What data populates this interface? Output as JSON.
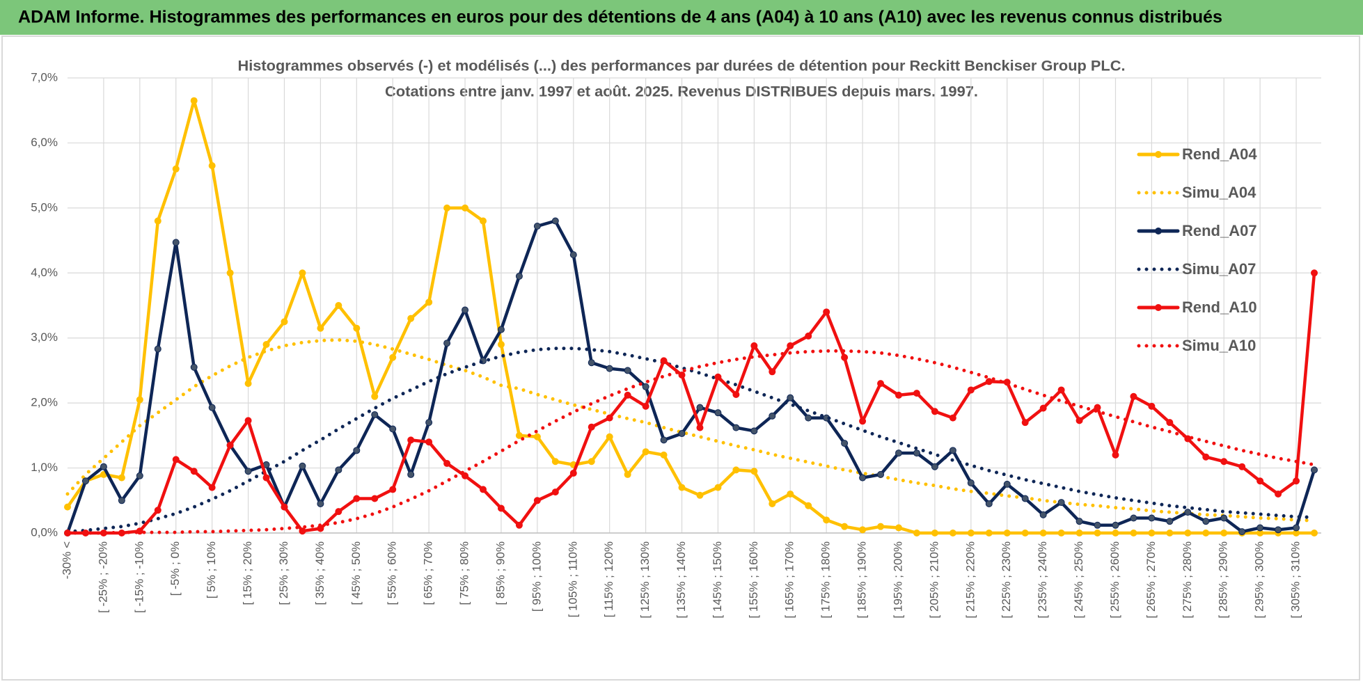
{
  "header": {
    "title": "ADAM Informe. Histogrammes des performances en euros pour des détentions de 4 ans (A04) à 10 ans (A10) avec les revenus connus distribués"
  },
  "chart_data": {
    "type": "line",
    "title": "Histogrammes observés (-) et modélisés (...) des performances par durées de détention pour Reckitt Benckiser Group PLC.",
    "subtitle": "Cotations entre janv. 1997 et août. 2025. Revenus DISTRIBUES depuis mars. 1997.",
    "categories": [
      "-30% <",
      null,
      "[ -25% ; -20%",
      null,
      "[ -15% ; -10%",
      null,
      "[ -5% ; 0%",
      null,
      "[ 5% ; 10%",
      null,
      "[ 15% ; 20%",
      null,
      "[ 25% ; 30%",
      null,
      "[ 35% ; 40%",
      null,
      "[ 45% ; 50%",
      null,
      "[ 55% ; 60%",
      null,
      "[ 65% ; 70%",
      null,
      "[ 75% ; 80%",
      null,
      "[ 85% ; 90%",
      null,
      "[ 95% ; 100%",
      null,
      "[ 105% ; 110%",
      null,
      "[ 115% ; 120%",
      null,
      "[ 125% ; 130%",
      null,
      "[ 135% ; 140%",
      null,
      "[ 145% ; 150%",
      null,
      "[ 155% ; 160%",
      null,
      "[ 165% ; 170%",
      null,
      "[ 175% ; 180%",
      null,
      "[ 185% ; 190%",
      null,
      "[ 195% ; 200%",
      null,
      "[ 205% ; 210%",
      null,
      "[ 215% ; 220%",
      null,
      "[ 225% ; 230%",
      null,
      "[ 235% ; 240%",
      null,
      "[ 245% ; 250%",
      null,
      "[ 255% ; 260%",
      null,
      "[ 265% ; 270%",
      null,
      "[ 275% ; 280%",
      null,
      "[ 285% ; 290%",
      null,
      "[ 295% ; 300%",
      null,
      "[ 305% ; 310%",
      null
    ],
    "series": [
      {
        "name": "Rend_A04",
        "color": "#ffc000",
        "line_style": "solid",
        "markers": true,
        "values": [
          0.4,
          0.8,
          0.9,
          0.85,
          2.05,
          4.8,
          5.6,
          6.65,
          5.65,
          4.0,
          2.3,
          2.9,
          3.25,
          4.0,
          3.15,
          3.5,
          3.15,
          2.1,
          2.7,
          3.3,
          3.55,
          5.0,
          5.0,
          4.8,
          2.9,
          1.5,
          1.48,
          1.1,
          1.05,
          1.1,
          1.48,
          0.9,
          1.25,
          1.2,
          0.7,
          0.58,
          0.7,
          0.97,
          0.95,
          0.45,
          0.6,
          0.42,
          0.2,
          0.1,
          0.05,
          0.1,
          0.08,
          0,
          0,
          0,
          0,
          0,
          0,
          0,
          0,
          0,
          0,
          0,
          0,
          0,
          0,
          0,
          0,
          0,
          0,
          0,
          0,
          0,
          0,
          0
        ]
      },
      {
        "name": "Simu_A04",
        "color": "#ffc000",
        "line_style": "dotted",
        "markers": false,
        "values": [
          0.6,
          0.9,
          1.15,
          1.4,
          1.65,
          1.85,
          2.05,
          2.25,
          2.42,
          2.57,
          2.7,
          2.8,
          2.88,
          2.93,
          2.96,
          2.97,
          2.95,
          2.9,
          2.83,
          2.75,
          2.67,
          2.58,
          2.5,
          2.4,
          2.27,
          2.22,
          2.13,
          2.05,
          1.97,
          1.9,
          1.83,
          1.76,
          1.7,
          1.62,
          1.55,
          1.48,
          1.41,
          1.34,
          1.28,
          1.21,
          1.15,
          1.09,
          1.03,
          0.97,
          0.92,
          0.87,
          0.82,
          0.77,
          0.73,
          0.68,
          0.64,
          0.61,
          0.57,
          0.54,
          0.5,
          0.47,
          0.44,
          0.42,
          0.39,
          0.37,
          0.34,
          0.32,
          0.3,
          0.28,
          0.27,
          0.25,
          0.23,
          0.22,
          0.2,
          0.19
        ]
      },
      {
        "name": "Rend_A07",
        "color": "#0e2656",
        "line_style": "solid",
        "markers": true,
        "values": [
          0,
          0.8,
          1.02,
          0.5,
          0.88,
          2.83,
          4.47,
          2.55,
          1.93,
          1.35,
          0.95,
          1.05,
          0.4,
          1.03,
          0.45,
          0.97,
          1.27,
          1.82,
          1.6,
          0.9,
          1.7,
          2.92,
          3.43,
          2.65,
          3.13,
          3.95,
          4.72,
          4.8,
          4.28,
          2.62,
          2.53,
          2.5,
          2.25,
          1.43,
          1.53,
          1.93,
          1.85,
          1.62,
          1.57,
          1.8,
          2.08,
          1.77,
          1.77,
          1.38,
          0.85,
          0.9,
          1.23,
          1.23,
          1.02,
          1.27,
          0.77,
          0.45,
          0.75,
          0.53,
          0.28,
          0.47,
          0.18,
          0.12,
          0.12,
          0.23,
          0.23,
          0.18,
          0.32,
          0.18,
          0.23,
          0.02,
          0.08,
          0.05,
          0.08,
          0.97
        ]
      },
      {
        "name": "Simu_A07",
        "color": "#0e2656",
        "line_style": "dotted",
        "markers": false,
        "values": [
          0.02,
          0.04,
          0.07,
          0.1,
          0.15,
          0.22,
          0.3,
          0.4,
          0.52,
          0.65,
          0.8,
          0.95,
          1.1,
          1.27,
          1.43,
          1.6,
          1.76,
          1.92,
          2.07,
          2.2,
          2.33,
          2.45,
          2.55,
          2.64,
          2.72,
          2.78,
          2.82,
          2.84,
          2.84,
          2.82,
          2.79,
          2.74,
          2.68,
          2.62,
          2.54,
          2.46,
          2.37,
          2.28,
          2.18,
          2.08,
          1.98,
          1.88,
          1.78,
          1.68,
          1.58,
          1.48,
          1.39,
          1.3,
          1.21,
          1.12,
          1.04,
          0.96,
          0.89,
          0.82,
          0.76,
          0.7,
          0.64,
          0.59,
          0.54,
          0.5,
          0.46,
          0.42,
          0.39,
          0.36,
          0.33,
          0.31,
          0.29,
          0.27,
          0.25,
          0.24
        ]
      },
      {
        "name": "Rend_A10",
        "color": "#f01010",
        "line_style": "solid",
        "markers": true,
        "values": [
          0,
          0,
          0,
          0,
          0.03,
          0.35,
          1.13,
          0.95,
          0.7,
          1.35,
          1.73,
          0.85,
          0.4,
          0.03,
          0.07,
          0.33,
          0.53,
          0.53,
          0.67,
          1.43,
          1.4,
          1.07,
          0.88,
          0.67,
          0.38,
          0.12,
          0.5,
          0.63,
          0.92,
          1.63,
          1.77,
          2.12,
          1.95,
          2.65,
          2.43,
          1.62,
          2.4,
          2.13,
          2.88,
          2.48,
          2.88,
          3.03,
          3.4,
          2.7,
          1.72,
          2.3,
          2.12,
          2.15,
          1.87,
          1.77,
          2.2,
          2.33,
          2.32,
          1.7,
          1.92,
          2.2,
          1.73,
          1.93,
          1.2,
          2.1,
          1.95,
          1.7,
          1.45,
          1.17,
          1.1,
          1.02,
          0.8,
          0.6,
          0.8,
          4.0
        ]
      },
      {
        "name": "Simu_A10",
        "color": "#f01010",
        "line_style": "dotted",
        "markers": false,
        "values": [
          0,
          0,
          0,
          0.01,
          0.01,
          0.01,
          0.01,
          0.02,
          0.02,
          0.03,
          0.04,
          0.05,
          0.07,
          0.09,
          0.12,
          0.16,
          0.22,
          0.3,
          0.4,
          0.52,
          0.65,
          0.8,
          0.95,
          1.1,
          1.26,
          1.42,
          1.57,
          1.72,
          1.86,
          1.99,
          2.11,
          2.22,
          2.32,
          2.41,
          2.49,
          2.56,
          2.62,
          2.67,
          2.71,
          2.74,
          2.77,
          2.79,
          2.8,
          2.8,
          2.79,
          2.77,
          2.73,
          2.68,
          2.62,
          2.55,
          2.47,
          2.39,
          2.3,
          2.21,
          2.12,
          2.03,
          1.95,
          1.87,
          1.79,
          1.71,
          1.63,
          1.56,
          1.48,
          1.41,
          1.34,
          1.27,
          1.21,
          1.15,
          1.1,
          1.05
        ]
      }
    ],
    "ylim": [
      0,
      7
    ],
    "yticks": [
      {
        "value": 0,
        "label": "0,0%"
      },
      {
        "value": 1,
        "label": "1,0%"
      },
      {
        "value": 2,
        "label": "2,0%"
      },
      {
        "value": 3,
        "label": "3,0%"
      },
      {
        "value": 4,
        "label": "4,0%"
      },
      {
        "value": 5,
        "label": "5,0%"
      },
      {
        "value": 6,
        "label": "6,0%"
      },
      {
        "value": 7,
        "label": "7,0%"
      }
    ],
    "grid": true,
    "legend": "right"
  }
}
